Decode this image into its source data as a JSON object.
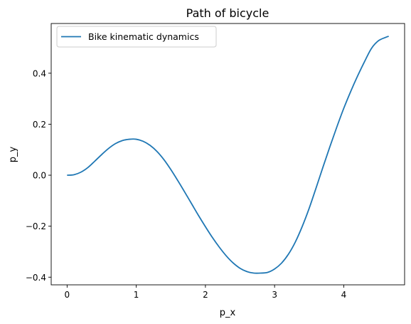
{
  "chart_data": {
    "type": "line",
    "title": "Path of bicycle",
    "xlabel": "p_x",
    "ylabel": "p_y",
    "xlim": [
      -0.23,
      4.88
    ],
    "ylim": [
      -0.43,
      0.595
    ],
    "xticks": [
      0,
      1,
      2,
      3,
      4
    ],
    "yticks": [
      -0.4,
      -0.2,
      0.0,
      0.2,
      0.4
    ],
    "xtick_labels": [
      "0",
      "1",
      "2",
      "3",
      "4"
    ],
    "ytick_labels": [
      "−0.4",
      "−0.2",
      "0.0",
      "0.2",
      "0.4"
    ],
    "legend_position": "top-left",
    "grid": false,
    "series": [
      {
        "name": "Bike kinematic dynamics",
        "color": "#1f77b4",
        "x": [
          0,
          0.1,
          0.2,
          0.3,
          0.4,
          0.5,
          0.6,
          0.7,
          0.8,
          0.9,
          1.0,
          1.1,
          1.2,
          1.3,
          1.4,
          1.5,
          1.6,
          1.7,
          1.8,
          1.9,
          2.0,
          2.1,
          2.2,
          2.3,
          2.4,
          2.5,
          2.6,
          2.7,
          2.8,
          2.9,
          3.0,
          3.1,
          3.2,
          3.3,
          3.4,
          3.5,
          3.6,
          3.7,
          3.8,
          3.9,
          4.0,
          4.1,
          4.2,
          4.3,
          4.4,
          4.5,
          4.6,
          4.65
        ],
        "y": [
          0.0,
          0.002,
          0.012,
          0.03,
          0.055,
          0.081,
          0.105,
          0.124,
          0.136,
          0.141,
          0.141,
          0.133,
          0.117,
          0.093,
          0.061,
          0.022,
          -0.021,
          -0.066,
          -0.112,
          -0.158,
          -0.202,
          -0.244,
          -0.282,
          -0.316,
          -0.344,
          -0.365,
          -0.378,
          -0.384,
          -0.384,
          -0.381,
          -0.368,
          -0.345,
          -0.31,
          -0.262,
          -0.201,
          -0.13,
          -0.05,
          0.032,
          0.112,
          0.189,
          0.262,
          0.328,
          0.389,
          0.445,
          0.497,
          0.527,
          0.54,
          0.545
        ]
      }
    ]
  }
}
